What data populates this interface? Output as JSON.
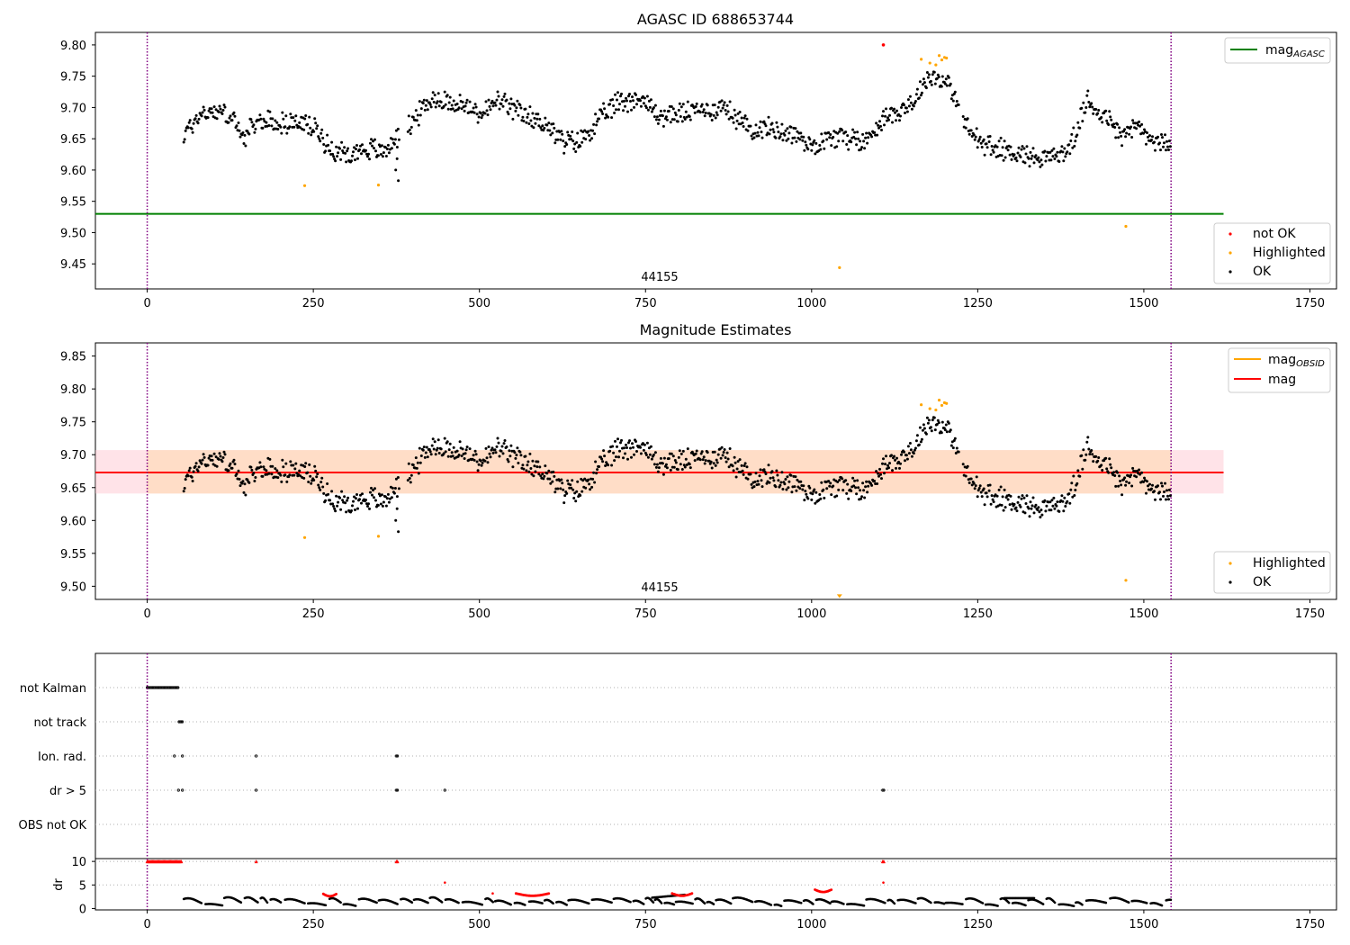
{
  "figure": {
    "colors": {
      "ok": "#000000",
      "highlighted": "#ffa500",
      "not_ok": "#ff0000",
      "agasc_line": "#008000",
      "obsid_line": "#ffa500",
      "mag_line": "#ff0000",
      "band_outer": "#ffc0cb",
      "band_inner": "#ffdab9",
      "vline": "#800080",
      "grid": "#b0b0b0"
    }
  },
  "chart_data": [
    {
      "type": "scatter",
      "title": "AGASC ID 688653744",
      "xlim": [
        -78,
        1790
      ],
      "ylim": [
        9.41,
        9.82
      ],
      "xticks": [
        0,
        250,
        500,
        750,
        1000,
        1250,
        1500,
        1750
      ],
      "yticks": [
        9.45,
        9.5,
        9.55,
        9.6,
        9.65,
        9.7,
        9.75,
        9.8
      ],
      "obsid_label": "44155",
      "obs_bounds": [
        0,
        1541
      ],
      "mag_agasc": 9.53,
      "legend_lines": [
        {
          "label": "mag",
          "sub": "AGASC"
        }
      ],
      "legend_points": [
        "not OK",
        "Highlighted",
        "OK"
      ],
      "not_ok_points": [
        [
          1108,
          9.8
        ]
      ],
      "highlighted_points": [
        [
          237,
          9.575
        ],
        [
          348,
          9.576
        ],
        [
          1042,
          9.444
        ],
        [
          1473,
          9.51
        ],
        [
          1165,
          9.777
        ],
        [
          1178,
          9.771
        ],
        [
          1187,
          9.768
        ],
        [
          1192,
          9.783
        ],
        [
          1196,
          9.776
        ],
        [
          1200,
          9.78
        ],
        [
          1203,
          9.779
        ]
      ]
    },
    {
      "type": "scatter",
      "title": "Magnitude Estimates",
      "xlim": [
        -78,
        1790
      ],
      "ylim": [
        9.48,
        9.87
      ],
      "xticks": [
        0,
        250,
        500,
        750,
        1000,
        1250,
        1500,
        1750
      ],
      "yticks": [
        9.5,
        9.55,
        9.6,
        9.65,
        9.7,
        9.75,
        9.8,
        9.85
      ],
      "obsid_label": "44155",
      "obs_bounds": [
        0,
        1541
      ],
      "mag_line": 9.673,
      "mag_obsid": 9.673,
      "band_outer": [
        9.641,
        9.707
      ],
      "band_inner": [
        9.641,
        9.707
      ],
      "legend_lines": [
        {
          "label": "mag",
          "sub": "OBSID"
        },
        {
          "label": "mag",
          "sub": ""
        }
      ],
      "legend_points": [
        "Highlighted",
        "OK"
      ],
      "highlighted_points": [
        [
          237,
          9.574
        ],
        [
          348,
          9.576
        ],
        [
          1042,
          9.485
        ],
        [
          1473,
          9.509
        ],
        [
          1165,
          9.776
        ],
        [
          1178,
          9.77
        ],
        [
          1187,
          9.768
        ],
        [
          1192,
          9.783
        ],
        [
          1196,
          9.775
        ],
        [
          1200,
          9.779
        ],
        [
          1203,
          9.778
        ]
      ]
    },
    {
      "type": "scatter",
      "title": "",
      "xlim": [
        -78,
        1790
      ],
      "xticks": [
        0,
        250,
        500,
        750,
        1000,
        1250,
        1500,
        1750
      ],
      "categories": [
        "not Kalman",
        "not track",
        "Ion. rad.",
        "dr > 5",
        "OBS not OK"
      ],
      "flags": {
        "not Kalman": [
          [
            0,
            47
          ]
        ],
        "not track": [
          [
            48,
            53
          ]
        ],
        "Ion. rad.": [
          [
            41,
            41
          ],
          [
            53,
            53
          ],
          [
            164,
            164
          ],
          [
            375,
            378
          ]
        ],
        "dr > 5": [
          [
            47,
            47
          ],
          [
            53,
            53
          ],
          [
            164,
            164
          ],
          [
            375,
            378
          ],
          [
            448,
            448
          ],
          [
            1107,
            1109
          ]
        ],
        "OBS not OK": []
      },
      "obs_bounds": [
        0,
        1541
      ]
    },
    {
      "type": "scatter",
      "title": "",
      "ylabel": "dr",
      "xlim": [
        -78,
        1790
      ],
      "ylim": [
        -0.3,
        10.6
      ],
      "xticks": [
        0,
        250,
        500,
        750,
        1000,
        1250,
        1500,
        1750
      ],
      "yticks": [
        0,
        5,
        10
      ],
      "red_clipped_ranges": [
        [
          0,
          52
        ],
        [
          164,
          164
        ],
        [
          375,
          378
        ],
        [
          1107,
          1109
        ]
      ],
      "red_arcs": [
        [
          265,
          285,
          3.1
        ],
        [
          555,
          605,
          3.2
        ],
        [
          790,
          820,
          3.2
        ],
        [
          1005,
          1030,
          4.0
        ]
      ],
      "red_singles": [
        [
          448,
          5.5
        ],
        [
          1108,
          5.5
        ],
        [
          520,
          3.2
        ]
      ],
      "obs_bounds": [
        0,
        1541
      ]
    }
  ]
}
